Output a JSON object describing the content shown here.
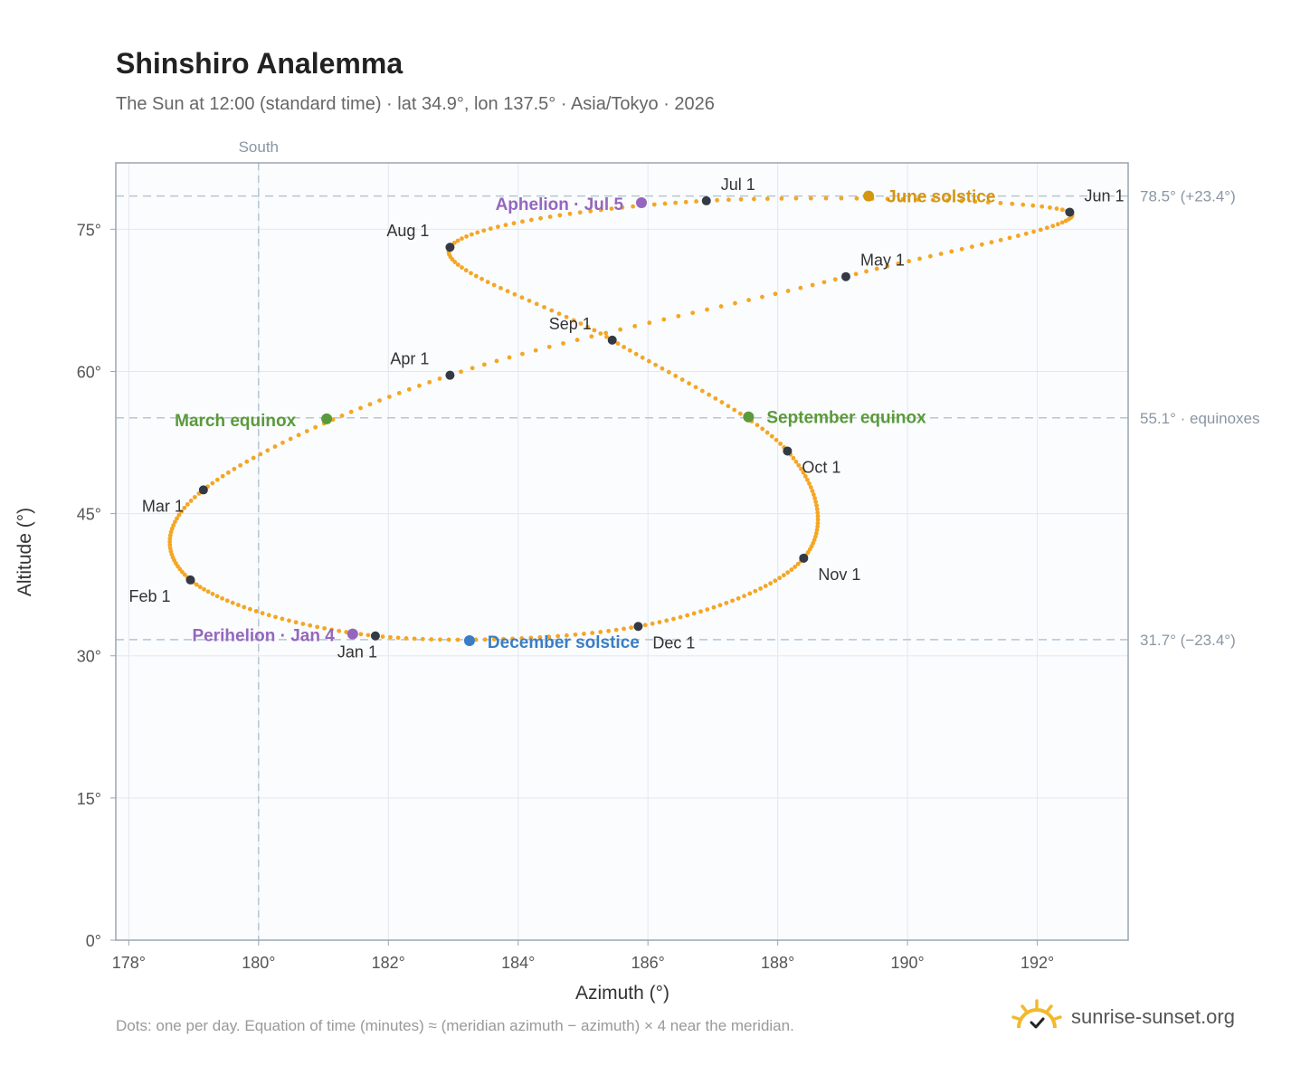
{
  "header": {
    "title": "Shinshiro Analemma",
    "subtitle": "The Sun at 12:00 (standard time) · lat 34.9°, lon 137.5° · Asia/Tokyo · 2026"
  },
  "footer": {
    "note": "Dots: one per day. Equation of time (minutes) ≈ (meridian azimuth − azimuth) × 4 near the meridian.",
    "brand": "sunrise-sunset.org",
    "brand_icon": "sun-logo-icon"
  },
  "chart_data": {
    "type": "scatter",
    "title": "Shinshiro Analemma",
    "subtitle": "The Sun at 12:00 (standard time) · lat 34.9°, lon 137.5° · Asia/Tokyo · 2026",
    "xlabel": "Azimuth (°)",
    "ylabel": "Altitude (°)",
    "xlim": [
      177.8,
      193.4
    ],
    "ylim": [
      0,
      82
    ],
    "x_ticks": [
      178,
      180,
      182,
      184,
      186,
      188,
      190,
      192
    ],
    "x_tick_labels": [
      "178°",
      "180°",
      "182°",
      "184°",
      "186°",
      "188°",
      "190°",
      "192°"
    ],
    "y_ticks": [
      0,
      15,
      30,
      45,
      60,
      75
    ],
    "y_tick_labels": [
      "0°",
      "15°",
      "30°",
      "45°",
      "60°",
      "75°"
    ],
    "grid": true,
    "south_line": {
      "x": 180,
      "label": "South"
    },
    "reference_lines": [
      {
        "y": 78.5,
        "label": "78.5° (+23.4°)"
      },
      {
        "y": 55.1,
        "label": "55.1° · equinoxes"
      },
      {
        "y": 31.7,
        "label": "31.7° (−23.4°)"
      }
    ],
    "series_color": "#f5a623",
    "month_markers": [
      {
        "label": "Jan 1",
        "x": 181.8,
        "y": 32.1
      },
      {
        "label": "Feb 1",
        "x": 178.95,
        "y": 38.0
      },
      {
        "label": "Mar 1",
        "x": 179.15,
        "y": 47.5
      },
      {
        "label": "Apr 1",
        "x": 182.95,
        "y": 59.6
      },
      {
        "label": "May 1",
        "x": 189.05,
        "y": 70.0
      },
      {
        "label": "Jun 1",
        "x": 192.5,
        "y": 76.8
      },
      {
        "label": "Jul 1",
        "x": 186.9,
        "y": 78.0
      },
      {
        "label": "Aug 1",
        "x": 182.95,
        "y": 73.1
      },
      {
        "label": "Sep 1",
        "x": 185.45,
        "y": 63.3
      },
      {
        "label": "Oct 1",
        "x": 188.15,
        "y": 51.6
      },
      {
        "label": "Nov 1",
        "x": 188.4,
        "y": 40.3
      },
      {
        "label": "Dec 1",
        "x": 185.85,
        "y": 33.1
      }
    ],
    "events": [
      {
        "label": "March equinox",
        "x": 181.05,
        "y": 55.0,
        "color": "#5a9a3a"
      },
      {
        "label": "June solstice",
        "x": 189.4,
        "y": 78.5,
        "color": "#d4950f"
      },
      {
        "label": "September equinox",
        "x": 187.55,
        "y": 55.2,
        "color": "#5a9a3a"
      },
      {
        "label": "December solstice",
        "x": 183.25,
        "y": 31.6,
        "color": "#3b7dc4"
      },
      {
        "label": "Perihelion · Jan 4",
        "x": 181.45,
        "y": 32.3,
        "color": "#9467bd"
      },
      {
        "label": "Aphelion · Jul 5",
        "x": 185.9,
        "y": 77.8,
        "color": "#9467bd"
      }
    ],
    "marker_color": "#333a44"
  }
}
